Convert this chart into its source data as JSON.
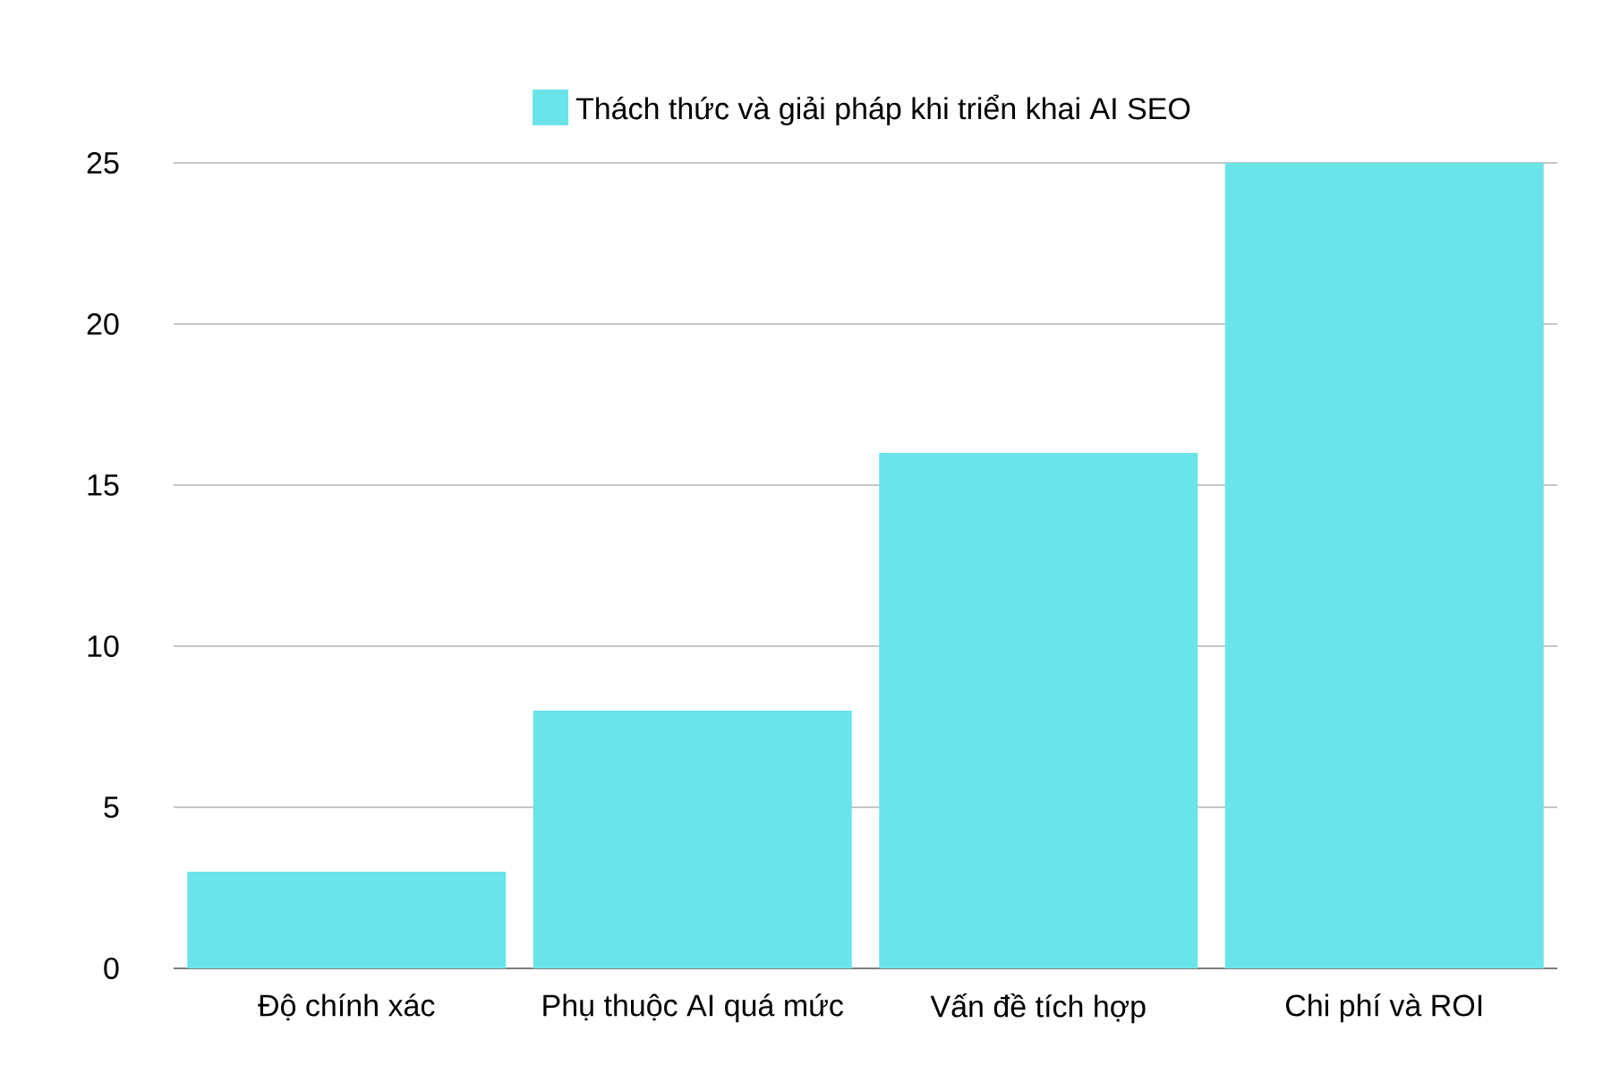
{
  "chart_data": {
    "type": "bar",
    "categories": [
      "Độ chính xác",
      "Phụ thuộc AI quá mức",
      "Vấn đề tích hợp",
      "Chi phí và ROI"
    ],
    "series": [
      {
        "name": "Thách thức và giải pháp khi triển khai AI SEO",
        "color": "#6ae4e8",
        "values": [
          3,
          8,
          16,
          25
        ]
      }
    ],
    "ylim": [
      0,
      25
    ],
    "yticks": [
      0,
      5,
      10,
      15,
      20,
      25
    ],
    "grid": "y",
    "legend": "top"
  }
}
